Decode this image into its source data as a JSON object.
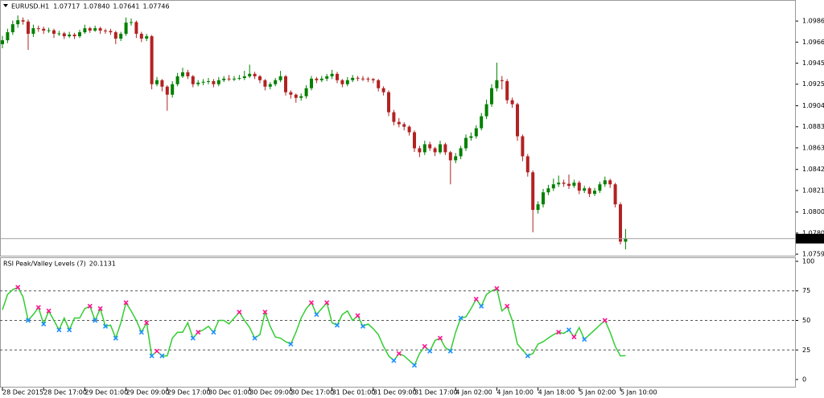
{
  "header": {
    "symbol": "EURUSD.H1",
    "ohlc_labels": [
      "1.07717",
      "1.07840",
      "1.07641",
      "1.07746"
    ]
  },
  "chart_data": [
    {
      "type": "candlestick",
      "up_color": "#008000",
      "down_color": "#b22222",
      "current_price_line": true,
      "ylim": [
        1.0758,
        1.1007
      ],
      "yticks": [
        1.09865,
        {
          "value": 1.0966,
          "label": "1.09660"
        },
        1.09455,
        {
          "value": 1.0925,
          "label": "1.09250"
        },
        {
          "value": 1.0904,
          "label": "1.09040"
        },
        1.08835,
        {
          "value": 1.0863,
          "label": "1.08630"
        },
        {
          "value": 1.0842,
          "label": "1.08420"
        },
        1.08215,
        1.08005,
        {
          "value": 1.078,
          "label": "1.07800"
        },
        1.07595
      ],
      "xticks": [
        {
          "value": 0,
          "label": "28 Dec 2015"
        },
        {
          "value": 8,
          "label": "28 Dec 17:00"
        },
        {
          "value": 16,
          "label": "29 Dec 01:00"
        },
        {
          "value": 24,
          "label": "29 Dec 09:00"
        },
        {
          "value": 32,
          "label": "29 Dec 17:00"
        },
        {
          "value": 40,
          "label": "30 Dec 01:00"
        },
        {
          "value": 48,
          "label": "30 Dec 09:00"
        },
        {
          "value": 56,
          "label": "30 Dec 17:00"
        },
        {
          "value": 64,
          "label": "31 Dec 01:00"
        },
        {
          "value": 72,
          "label": "31 Dec 09:00"
        },
        {
          "value": 80,
          "label": "31 Dec 17:00"
        },
        {
          "value": 88,
          "label": "4 Jan 02:00"
        },
        {
          "value": 96,
          "label": "4 Jan 10:00"
        },
        {
          "value": 104,
          "label": "4 Jan 18:00"
        },
        {
          "value": 112,
          "label": "5 Jan 02:00"
        },
        {
          "value": 120,
          "label": "5 Jan 10:00"
        }
      ],
      "candles": [
        [
          1.0964,
          1.0972,
          1.096,
          1.09678
        ],
        [
          1.09678,
          1.0979,
          1.0965,
          1.09756
        ],
        [
          1.09756,
          1.0987,
          1.0973,
          1.09834
        ],
        [
          1.09834,
          1.0992,
          1.098,
          1.09873
        ],
        [
          1.09873,
          1.099,
          1.0983,
          1.0986
        ],
        [
          1.0986,
          1.0988,
          1.09585,
          1.09741
        ],
        [
          1.09741,
          1.0983,
          1.0971,
          1.09795
        ],
        [
          1.09795,
          1.0982,
          1.0976,
          1.0979
        ],
        [
          1.0979,
          1.0981,
          1.0974,
          1.09772
        ],
        [
          1.09772,
          1.098,
          1.0975,
          1.09775
        ],
        [
          1.09775,
          1.0979,
          1.097,
          1.09741
        ],
        [
          1.09741,
          1.0977,
          1.0972,
          1.09745
        ],
        [
          1.09745,
          1.0976,
          1.0969,
          1.09717
        ],
        [
          1.09717,
          1.0976,
          1.097,
          1.09733
        ],
        [
          1.09733,
          1.0975,
          1.0969,
          1.09717
        ],
        [
          1.09717,
          1.0978,
          1.097,
          1.09756
        ],
        [
          1.09756,
          1.0983,
          1.0974,
          1.09795
        ],
        [
          1.09795,
          1.0981,
          1.0975,
          1.09772
        ],
        [
          1.09772,
          1.0982,
          1.0976,
          1.09795
        ],
        [
          1.09795,
          1.0981,
          1.0974,
          1.09772
        ],
        [
          1.09772,
          1.0979,
          1.0974,
          1.09768
        ],
        [
          1.09768,
          1.0979,
          1.0973,
          1.09756
        ],
        [
          1.09756,
          1.0977,
          1.0964,
          1.09694
        ],
        [
          1.09694,
          1.0976,
          1.0967,
          1.09741
        ],
        [
          1.09741,
          1.099,
          1.0972,
          1.0985
        ],
        [
          1.0985,
          1.0989,
          1.0982,
          1.09855
        ],
        [
          1.09855,
          1.0987,
          1.097,
          1.09741
        ],
        [
          1.09741,
          1.0976,
          1.0966,
          1.09694
        ],
        [
          1.09694,
          1.0974,
          1.0967,
          1.09717
        ],
        [
          1.09717,
          1.0973,
          1.092,
          1.0925
        ],
        [
          1.0925,
          1.0932,
          1.0923,
          1.09289
        ],
        [
          1.09289,
          1.093,
          1.0918,
          1.09226
        ],
        [
          1.09226,
          1.0924,
          1.08992,
          1.09148
        ],
        [
          1.09148,
          1.0928,
          1.0912,
          1.0925
        ],
        [
          1.0925,
          1.0936,
          1.0923,
          1.09327
        ],
        [
          1.09327,
          1.0941,
          1.0931,
          1.09366
        ],
        [
          1.09366,
          1.0939,
          1.093,
          1.09327
        ],
        [
          1.09327,
          1.0934,
          1.0922,
          1.0925
        ],
        [
          1.0925,
          1.0929,
          1.0923,
          1.09265
        ],
        [
          1.09265,
          1.093,
          1.0924,
          1.09273
        ],
        [
          1.09273,
          1.0931,
          1.0925,
          1.0928
        ],
        [
          1.0928,
          1.093,
          1.0922,
          1.0925
        ],
        [
          1.0925,
          1.0932,
          1.0923,
          1.09289
        ],
        [
          1.09289,
          1.0933,
          1.0927,
          1.09304
        ],
        [
          1.09304,
          1.0934,
          1.0928,
          1.093
        ],
        [
          1.093,
          1.0933,
          1.0928,
          1.09304
        ],
        [
          1.09304,
          1.0934,
          1.0929,
          1.0931
        ],
        [
          1.0931,
          1.0938,
          1.0929,
          1.09327
        ],
        [
          1.09327,
          1.0944,
          1.0931,
          1.09351
        ],
        [
          1.09351,
          1.0937,
          1.093,
          1.09327
        ],
        [
          1.09327,
          1.0934,
          1.0926,
          1.09289
        ],
        [
          1.09289,
          1.093,
          1.0919,
          1.09226
        ],
        [
          1.09226,
          1.0927,
          1.092,
          1.0925
        ],
        [
          1.0925,
          1.0931,
          1.0923,
          1.09289
        ],
        [
          1.09289,
          1.0938,
          1.0927,
          1.09327
        ],
        [
          1.09327,
          1.0934,
          1.0914,
          1.09172
        ],
        [
          1.09172,
          1.0919,
          1.0911,
          1.09148
        ],
        [
          1.09148,
          1.0916,
          1.0907,
          1.09117
        ],
        [
          1.09117,
          1.0916,
          1.0909,
          1.09133
        ],
        [
          1.09133,
          1.0924,
          1.0911,
          1.09211
        ],
        [
          1.09211,
          1.0933,
          1.0919,
          1.09304
        ],
        [
          1.09304,
          1.0932,
          1.0926,
          1.09289
        ],
        [
          1.09289,
          1.0933,
          1.0927,
          1.09304
        ],
        [
          1.09304,
          1.0935,
          1.0928,
          1.09327
        ],
        [
          1.09327,
          1.0939,
          1.093,
          1.09351
        ],
        [
          1.09351,
          1.0937,
          1.0926,
          1.09289
        ],
        [
          1.09289,
          1.093,
          1.0922,
          1.0925
        ],
        [
          1.0925,
          1.0932,
          1.0923,
          1.09289
        ],
        [
          1.09289,
          1.0934,
          1.0927,
          1.09312
        ],
        [
          1.09312,
          1.0933,
          1.0928,
          1.09305
        ],
        [
          1.09305,
          1.0933,
          1.0928,
          1.09304
        ],
        [
          1.09304,
          1.0932,
          1.0927,
          1.093
        ],
        [
          1.093,
          1.0931,
          1.0926,
          1.09289
        ],
        [
          1.09289,
          1.093,
          1.0918,
          1.09211
        ],
        [
          1.09211,
          1.0923,
          1.0914,
          1.09172
        ],
        [
          1.09172,
          1.0919,
          1.0894,
          1.08977
        ],
        [
          1.08977,
          1.09,
          1.0885,
          1.08883
        ],
        [
          1.08883,
          1.0892,
          1.0883,
          1.0886
        ],
        [
          1.0886,
          1.0888,
          1.088,
          1.08836
        ],
        [
          1.08836,
          1.0885,
          1.0875,
          1.08782
        ],
        [
          1.08782,
          1.088,
          1.0859,
          1.08626
        ],
        [
          1.08626,
          1.0865,
          1.0854,
          1.08587
        ],
        [
          1.08587,
          1.087,
          1.0856,
          1.08665
        ],
        [
          1.08665,
          1.0869,
          1.086,
          1.08626
        ],
        [
          1.08626,
          1.0864,
          1.0855,
          1.08587
        ],
        [
          1.08587,
          1.087,
          1.0857,
          1.08665
        ],
        [
          1.08665,
          1.0868,
          1.0856,
          1.08587
        ],
        [
          1.08587,
          1.086,
          1.08275,
          1.08509
        ],
        [
          1.08509,
          1.0858,
          1.0848,
          1.08548
        ],
        [
          1.08548,
          1.0865,
          1.0852,
          1.08626
        ],
        [
          1.08626,
          1.0876,
          1.086,
          1.08727
        ],
        [
          1.08727,
          1.0878,
          1.087,
          1.08743
        ],
        [
          1.08743,
          1.0885,
          1.0872,
          1.08821
        ],
        [
          1.08821,
          1.0897,
          1.088,
          1.08938
        ],
        [
          1.08938,
          1.091,
          1.0891,
          1.09055
        ],
        [
          1.09055,
          1.0925,
          1.0903,
          1.09211
        ],
        [
          1.09211,
          1.0946,
          1.0918,
          1.09289
        ],
        [
          1.09289,
          1.0933,
          1.092,
          1.0928
        ],
        [
          1.0928,
          1.093,
          1.0906,
          1.09094
        ],
        [
          1.09094,
          1.0912,
          1.0902,
          1.09055
        ],
        [
          1.09055,
          1.0907,
          1.087,
          1.08743
        ],
        [
          1.08743,
          1.0876,
          1.085,
          1.08548
        ],
        [
          1.08548,
          1.0857,
          1.0835,
          1.08392
        ],
        [
          1.08392,
          1.0841,
          1.07808,
          1.08026
        ],
        [
          1.08026,
          1.0811,
          1.0799,
          1.0808
        ],
        [
          1.0808,
          1.0823,
          1.0805,
          1.08197
        ],
        [
          1.08197,
          1.0827,
          1.0817,
          1.08236
        ],
        [
          1.08236,
          1.0833,
          1.0821,
          1.08275
        ],
        [
          1.08275,
          1.0836,
          1.0825,
          1.08291
        ],
        [
          1.08291,
          1.0832,
          1.0825,
          1.0828
        ],
        [
          1.0828,
          1.0837,
          1.0823,
          1.0826
        ],
        [
          1.0826,
          1.0832,
          1.0824,
          1.08291
        ],
        [
          1.08291,
          1.0831,
          1.0818,
          1.08213
        ],
        [
          1.08213,
          1.0826,
          1.0819,
          1.08236
        ],
        [
          1.08236,
          1.0825,
          1.0815,
          1.08182
        ],
        [
          1.08182,
          1.0824,
          1.0816,
          1.08213
        ],
        [
          1.08213,
          1.083,
          1.0819,
          1.08275
        ],
        [
          1.08275,
          1.0835,
          1.0825,
          1.08314
        ],
        [
          1.08314,
          1.0833,
          1.0824,
          1.08275
        ],
        [
          1.08275,
          1.0829,
          1.0805,
          1.0808
        ],
        [
          1.0808,
          1.081,
          1.0769,
          1.07717
        ],
        [
          1.07717,
          1.0784,
          1.07641,
          1.07746
        ]
      ]
    },
    {
      "type": "line",
      "title": "RSI Peak/Valley Levels (7)",
      "color": "#32cd32",
      "ylim": [
        -6.8,
        103.4
      ],
      "yticks": [
        0,
        25,
        50,
        75,
        100
      ],
      "levels": [
        25,
        50,
        75
      ],
      "values": [
        59,
        72,
        76,
        78,
        70,
        50,
        55,
        61,
        47,
        58,
        50,
        42,
        52,
        42,
        52,
        52,
        60,
        62,
        50,
        60,
        45,
        46,
        35,
        48,
        65,
        58,
        50,
        40,
        48,
        20,
        24,
        20,
        20,
        35,
        40,
        40,
        48,
        35,
        40,
        42,
        45,
        40,
        50,
        50,
        47,
        52,
        57,
        50,
        44,
        35,
        38,
        57,
        45,
        36,
        35,
        32,
        30,
        40,
        52,
        60,
        65,
        55,
        60,
        65,
        48,
        46,
        55,
        58,
        50,
        54,
        45,
        47,
        43,
        38,
        28,
        20,
        16,
        22,
        20,
        16,
        12,
        22,
        28,
        24,
        33,
        35,
        27,
        24,
        40,
        52,
        53,
        60,
        68,
        62,
        72,
        75,
        77,
        58,
        62,
        50,
        30,
        25,
        20,
        22,
        30,
        32,
        35,
        38,
        40,
        39,
        42,
        36,
        44,
        34,
        38,
        42,
        46,
        50,
        40,
        28,
        20,
        20.1131
      ],
      "peaks": {
        "color": "#ff1493",
        "index": [
          3,
          7,
          9,
          17,
          19,
          24,
          28,
          30,
          38,
          46,
          51,
          60,
          63,
          69,
          77,
          82,
          85,
          92,
          96,
          98,
          108,
          111,
          117
        ]
      },
      "valleys": {
        "color": "#1e90ff",
        "index": [
          5,
          8,
          11,
          13,
          18,
          20,
          22,
          27,
          29,
          31,
          37,
          41,
          49,
          56,
          61,
          65,
          70,
          76,
          80,
          83,
          87,
          89,
          93,
          102,
          110,
          113
        ]
      }
    }
  ]
}
